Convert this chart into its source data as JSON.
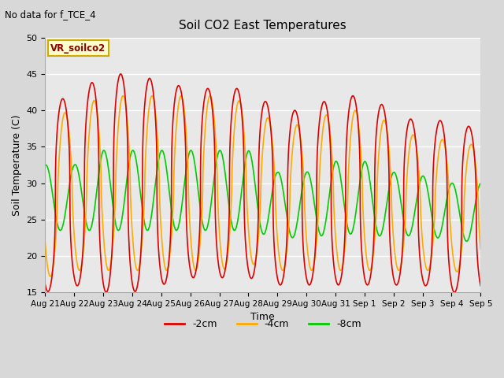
{
  "title": "Soil CO2 East Temperatures",
  "no_data_text": "No data for f_TCE_4",
  "annotation_text": "VR_soilco2",
  "xlabel": "Time",
  "ylabel": "Soil Temperature (C)",
  "ylim": [
    15,
    50
  ],
  "yticks": [
    15,
    20,
    25,
    30,
    35,
    40,
    45,
    50
  ],
  "colors": {
    "-2cm": "#dd0000",
    "-4cm": "#ffaa00",
    "-8cm": "#00cc00"
  },
  "bg_color": "#d8d8d8",
  "axes_bg_color": "#e8e8e8",
  "tick_labels": [
    "Aug 21",
    "Aug 22",
    "Aug 23",
    "Aug 24",
    "Aug 25",
    "Aug 26",
    "Aug 27",
    "Aug 28",
    "Aug 29",
    "Aug 30",
    "Aug 31",
    "Sep 1",
    "Sep 2",
    "Sep 3",
    "Sep 4",
    "Sep 5"
  ],
  "num_days": 15,
  "points_per_day": 200,
  "depth_params": {
    "-2cm": {
      "amp": [
        13,
        13,
        15,
        15,
        14,
        13,
        13,
        13,
        12,
        12,
        13,
        13,
        12,
        11,
        12,
        11
      ],
      "mean": [
        28,
        29,
        30,
        30,
        30,
        30,
        30,
        30,
        28,
        28,
        29,
        29,
        28,
        27,
        27,
        26
      ],
      "phase_shift": 0.0,
      "sharpness": 2.5
    },
    "-4cm": {
      "amp": [
        11,
        11,
        12,
        12,
        12,
        12,
        12,
        11,
        10,
        10,
        11,
        11,
        10,
        9,
        9,
        9
      ],
      "mean": [
        28,
        29,
        30,
        30,
        30,
        30,
        30,
        30,
        28,
        28,
        29,
        29,
        28,
        27,
        27,
        26
      ],
      "phase_shift": 0.08,
      "sharpness": 1.5
    },
    "-8cm": {
      "amp": [
        4.5,
        4.5,
        5.5,
        5.5,
        5.5,
        5.5,
        5.5,
        5.5,
        4.5,
        4.5,
        5.0,
        5.0,
        4.5,
        4.0,
        4.0,
        4.0
      ],
      "mean": [
        28,
        28,
        29,
        29,
        29,
        29,
        29,
        29,
        27,
        27,
        28,
        28,
        27,
        27,
        26,
        26
      ],
      "phase_shift": 0.42,
      "sharpness": 1.0
    }
  }
}
